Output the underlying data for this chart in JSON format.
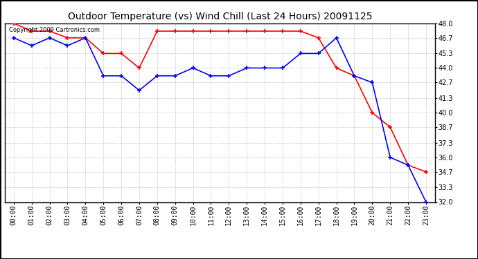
{
  "title": "Outdoor Temperature (vs) Wind Chill (Last 24 Hours) 20091125",
  "copyright": "Copyright 2009 Cartronics.com",
  "x_labels": [
    "00:00",
    "01:00",
    "02:00",
    "03:00",
    "04:00",
    "05:00",
    "06:00",
    "07:00",
    "08:00",
    "09:00",
    "10:00",
    "11:00",
    "12:00",
    "13:00",
    "14:00",
    "15:00",
    "16:00",
    "17:00",
    "18:00",
    "19:00",
    "20:00",
    "21:00",
    "22:00",
    "23:00"
  ],
  "temp_red": [
    48.0,
    47.3,
    47.3,
    46.7,
    46.7,
    45.3,
    45.3,
    44.0,
    47.3,
    47.3,
    47.3,
    47.3,
    47.3,
    47.3,
    47.3,
    47.3,
    47.3,
    46.7,
    44.0,
    43.3,
    40.0,
    38.7,
    35.3,
    34.7
  ],
  "wind_chill_blue": [
    46.7,
    46.0,
    46.7,
    46.0,
    46.7,
    43.3,
    43.3,
    42.0,
    43.3,
    43.3,
    44.0,
    43.3,
    43.3,
    44.0,
    44.0,
    44.0,
    45.3,
    45.3,
    46.7,
    43.3,
    42.7,
    36.0,
    35.3,
    32.0
  ],
  "ylim_min": 32.0,
  "ylim_max": 48.0,
  "yticks": [
    32.0,
    33.3,
    34.7,
    36.0,
    37.3,
    38.7,
    40.0,
    41.3,
    42.7,
    44.0,
    45.3,
    46.7,
    48.0
  ],
  "grid_color": "#bbbbbb",
  "bg_color": "#ffffff",
  "red_color": "#ff0000",
  "blue_color": "#0000ff",
  "title_fontsize": 10,
  "tick_fontsize": 7,
  "copyright_fontsize": 6
}
